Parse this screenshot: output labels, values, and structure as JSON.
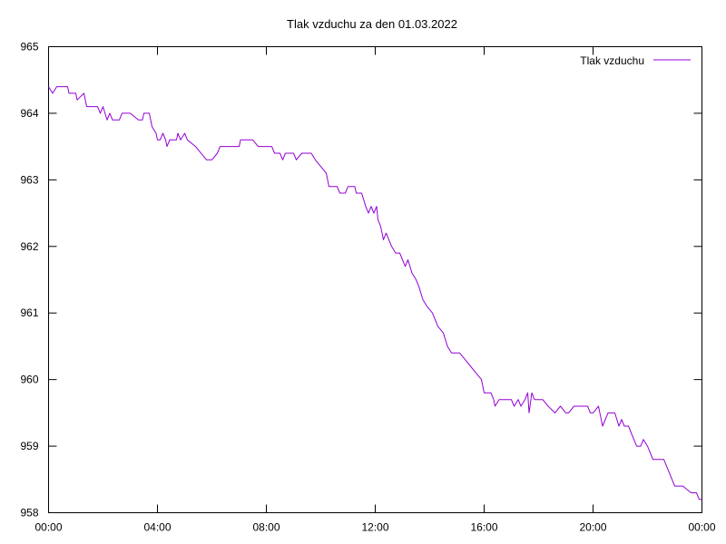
{
  "chart_data": {
    "type": "line",
    "title": "Tlak vzduchu za den 01.03.2022",
    "xlabel": "",
    "ylabel": "",
    "xlim_hours": [
      0,
      24
    ],
    "ylim": [
      958,
      965
    ],
    "x_ticks": [
      {
        "h": 0,
        "label": "00:00"
      },
      {
        "h": 4,
        "label": "04:00"
      },
      {
        "h": 8,
        "label": "08:00"
      },
      {
        "h": 12,
        "label": "12:00"
      },
      {
        "h": 16,
        "label": "16:00"
      },
      {
        "h": 20,
        "label": "20:00"
      },
      {
        "h": 24,
        "label": "00:00"
      }
    ],
    "y_ticks": [
      958,
      959,
      960,
      961,
      962,
      963,
      964,
      965
    ],
    "grid": false,
    "legend": {
      "position": "top-right"
    },
    "series": [
      {
        "name": "Tlak vzduchu",
        "color": "#9400d3",
        "points": [
          [
            0.0,
            964.4
          ],
          [
            0.15,
            964.3
          ],
          [
            0.3,
            964.4
          ],
          [
            0.7,
            964.4
          ],
          [
            0.75,
            964.3
          ],
          [
            1.0,
            964.3
          ],
          [
            1.05,
            964.2
          ],
          [
            1.3,
            964.3
          ],
          [
            1.4,
            964.1
          ],
          [
            1.8,
            964.1
          ],
          [
            1.9,
            964.0
          ],
          [
            2.0,
            964.1
          ],
          [
            2.15,
            963.9
          ],
          [
            2.25,
            964.0
          ],
          [
            2.35,
            963.9
          ],
          [
            2.6,
            963.9
          ],
          [
            2.7,
            964.0
          ],
          [
            3.0,
            964.0
          ],
          [
            3.3,
            963.9
          ],
          [
            3.45,
            963.9
          ],
          [
            3.5,
            964.0
          ],
          [
            3.7,
            964.0
          ],
          [
            3.8,
            963.8
          ],
          [
            3.95,
            963.7
          ],
          [
            4.0,
            963.6
          ],
          [
            4.1,
            963.6
          ],
          [
            4.2,
            963.7
          ],
          [
            4.3,
            963.6
          ],
          [
            4.35,
            963.5
          ],
          [
            4.45,
            963.6
          ],
          [
            4.7,
            963.6
          ],
          [
            4.75,
            963.7
          ],
          [
            4.85,
            963.6
          ],
          [
            5.0,
            963.7
          ],
          [
            5.1,
            963.6
          ],
          [
            5.4,
            963.5
          ],
          [
            5.8,
            963.3
          ],
          [
            6.0,
            963.3
          ],
          [
            6.2,
            963.4
          ],
          [
            6.3,
            963.5
          ],
          [
            7.0,
            963.5
          ],
          [
            7.05,
            963.6
          ],
          [
            7.5,
            963.6
          ],
          [
            7.7,
            963.5
          ],
          [
            8.2,
            963.5
          ],
          [
            8.3,
            963.4
          ],
          [
            8.5,
            963.4
          ],
          [
            8.6,
            963.3
          ],
          [
            8.7,
            963.4
          ],
          [
            9.0,
            963.4
          ],
          [
            9.1,
            963.3
          ],
          [
            9.3,
            963.4
          ],
          [
            9.65,
            963.4
          ],
          [
            9.8,
            963.3
          ],
          [
            10.0,
            963.2
          ],
          [
            10.2,
            963.1
          ],
          [
            10.3,
            962.9
          ],
          [
            10.6,
            962.9
          ],
          [
            10.7,
            962.8
          ],
          [
            10.9,
            962.8
          ],
          [
            11.0,
            962.9
          ],
          [
            11.25,
            962.9
          ],
          [
            11.3,
            962.8
          ],
          [
            11.5,
            962.8
          ],
          [
            11.65,
            962.6
          ],
          [
            11.75,
            962.5
          ],
          [
            11.85,
            962.6
          ],
          [
            11.95,
            962.5
          ],
          [
            12.05,
            962.6
          ],
          [
            12.1,
            962.4
          ],
          [
            12.2,
            962.3
          ],
          [
            12.3,
            962.1
          ],
          [
            12.4,
            962.2
          ],
          [
            12.6,
            962.0
          ],
          [
            12.75,
            961.9
          ],
          [
            12.9,
            961.9
          ],
          [
            13.0,
            961.8
          ],
          [
            13.1,
            961.7
          ],
          [
            13.2,
            961.8
          ],
          [
            13.35,
            961.6
          ],
          [
            13.5,
            961.5
          ],
          [
            13.6,
            961.4
          ],
          [
            13.75,
            961.2
          ],
          [
            13.9,
            961.1
          ],
          [
            14.1,
            961.0
          ],
          [
            14.2,
            960.9
          ],
          [
            14.3,
            960.8
          ],
          [
            14.5,
            960.7
          ],
          [
            14.65,
            960.5
          ],
          [
            14.8,
            960.4
          ],
          [
            15.1,
            960.4
          ],
          [
            15.3,
            960.3
          ],
          [
            15.5,
            960.2
          ],
          [
            15.7,
            960.1
          ],
          [
            15.9,
            960.0
          ],
          [
            16.0,
            959.8
          ],
          [
            16.25,
            959.8
          ],
          [
            16.35,
            959.7
          ],
          [
            16.4,
            959.6
          ],
          [
            16.55,
            959.7
          ],
          [
            16.9,
            959.7
          ],
          [
            17.0,
            959.7
          ],
          [
            17.1,
            959.6
          ],
          [
            17.25,
            959.7
          ],
          [
            17.35,
            959.6
          ],
          [
            17.5,
            959.7
          ],
          [
            17.6,
            959.8
          ],
          [
            17.65,
            959.5
          ],
          [
            17.75,
            959.8
          ],
          [
            17.85,
            959.7
          ],
          [
            18.0,
            959.7
          ],
          [
            18.15,
            959.7
          ],
          [
            18.35,
            959.6
          ],
          [
            18.6,
            959.5
          ],
          [
            18.8,
            959.6
          ],
          [
            19.0,
            959.5
          ],
          [
            19.1,
            959.5
          ],
          [
            19.3,
            959.6
          ],
          [
            19.8,
            959.6
          ],
          [
            19.9,
            959.5
          ],
          [
            20.0,
            959.5
          ],
          [
            20.2,
            959.6
          ],
          [
            20.3,
            959.4
          ],
          [
            20.35,
            959.3
          ],
          [
            20.55,
            959.5
          ],
          [
            20.8,
            959.5
          ],
          [
            20.95,
            959.3
          ],
          [
            21.05,
            959.4
          ],
          [
            21.15,
            959.3
          ],
          [
            21.3,
            959.3
          ],
          [
            21.5,
            959.1
          ],
          [
            21.6,
            959.0
          ],
          [
            21.75,
            959.0
          ],
          [
            21.85,
            959.1
          ],
          [
            22.0,
            959.0
          ],
          [
            22.2,
            958.8
          ],
          [
            22.6,
            958.8
          ],
          [
            22.8,
            958.6
          ],
          [
            23.0,
            958.4
          ],
          [
            23.3,
            958.4
          ],
          [
            23.6,
            958.3
          ],
          [
            23.8,
            958.3
          ],
          [
            23.9,
            958.2
          ],
          [
            24.0,
            958.2
          ]
        ]
      }
    ]
  }
}
